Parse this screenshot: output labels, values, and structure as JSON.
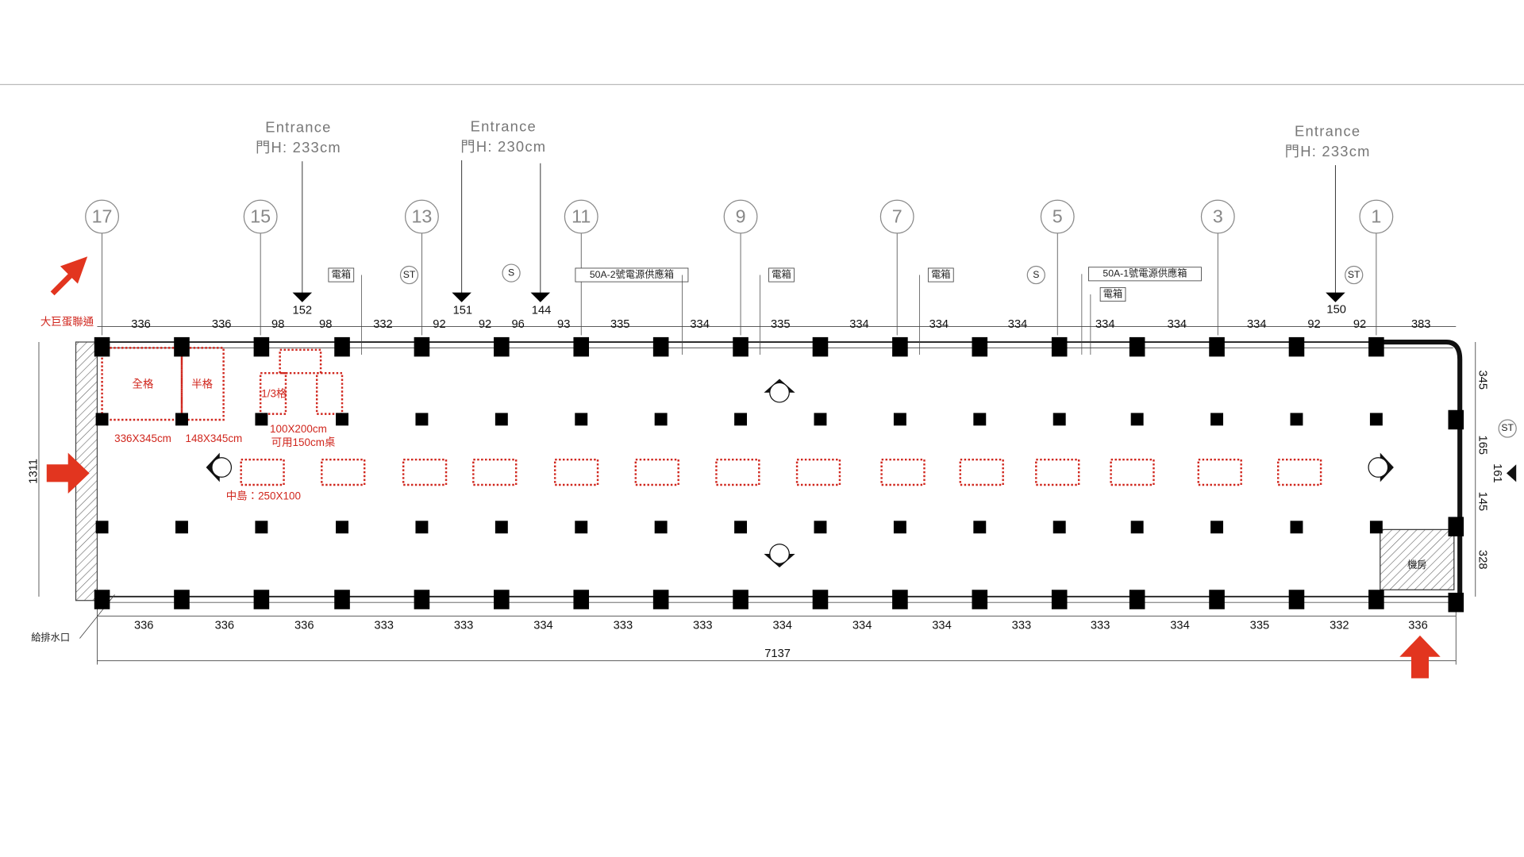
{
  "entrances": [
    {
      "title": "Entrance",
      "height": "門H: 233cm"
    },
    {
      "title": "Entrance",
      "height": "門H: 230cm"
    },
    {
      "title": "Entrance",
      "height": "門H: 233cm"
    }
  ],
  "grid_labels": [
    "17",
    "15",
    "13",
    "11",
    "9",
    "7",
    "5",
    "3",
    "1"
  ],
  "equipment_labels": [
    "電箱",
    "電箱",
    "電箱",
    "電箱",
    "50A-2號電源供應箱",
    "50A-1號電源供應箱"
  ],
  "symbols": [
    "ST",
    "S",
    "S",
    "ST",
    "ST"
  ],
  "top_dimensions": [
    "336",
    "336",
    "98",
    "152",
    "98",
    "332",
    "92",
    "151",
    "92",
    "96",
    "144",
    "93",
    "335",
    "334",
    "335",
    "334",
    "334",
    "334",
    "334",
    "334",
    "334",
    "92",
    "150",
    "92",
    "383"
  ],
  "bottom_dimensions": [
    "336",
    "336",
    "336",
    "333",
    "333",
    "334",
    "333",
    "333",
    "334",
    "334",
    "334",
    "333",
    "333",
    "334",
    "335",
    "332",
    "336"
  ],
  "total_width": "7137",
  "left_dimension": "1311",
  "right_dimensions": [
    "345",
    "165",
    "161",
    "145",
    "328"
  ],
  "booth_labels": {
    "link": "大巨蛋聯通",
    "full": "全格",
    "half": "半格",
    "third": "1/3格",
    "full_size": "336X345cm",
    "half_size": "148X345cm",
    "third_size": "100X200cm",
    "third_note": "可用150cm桌",
    "island": "中島：250X100"
  },
  "drain_label": "給排水口",
  "machine_room": "機房"
}
